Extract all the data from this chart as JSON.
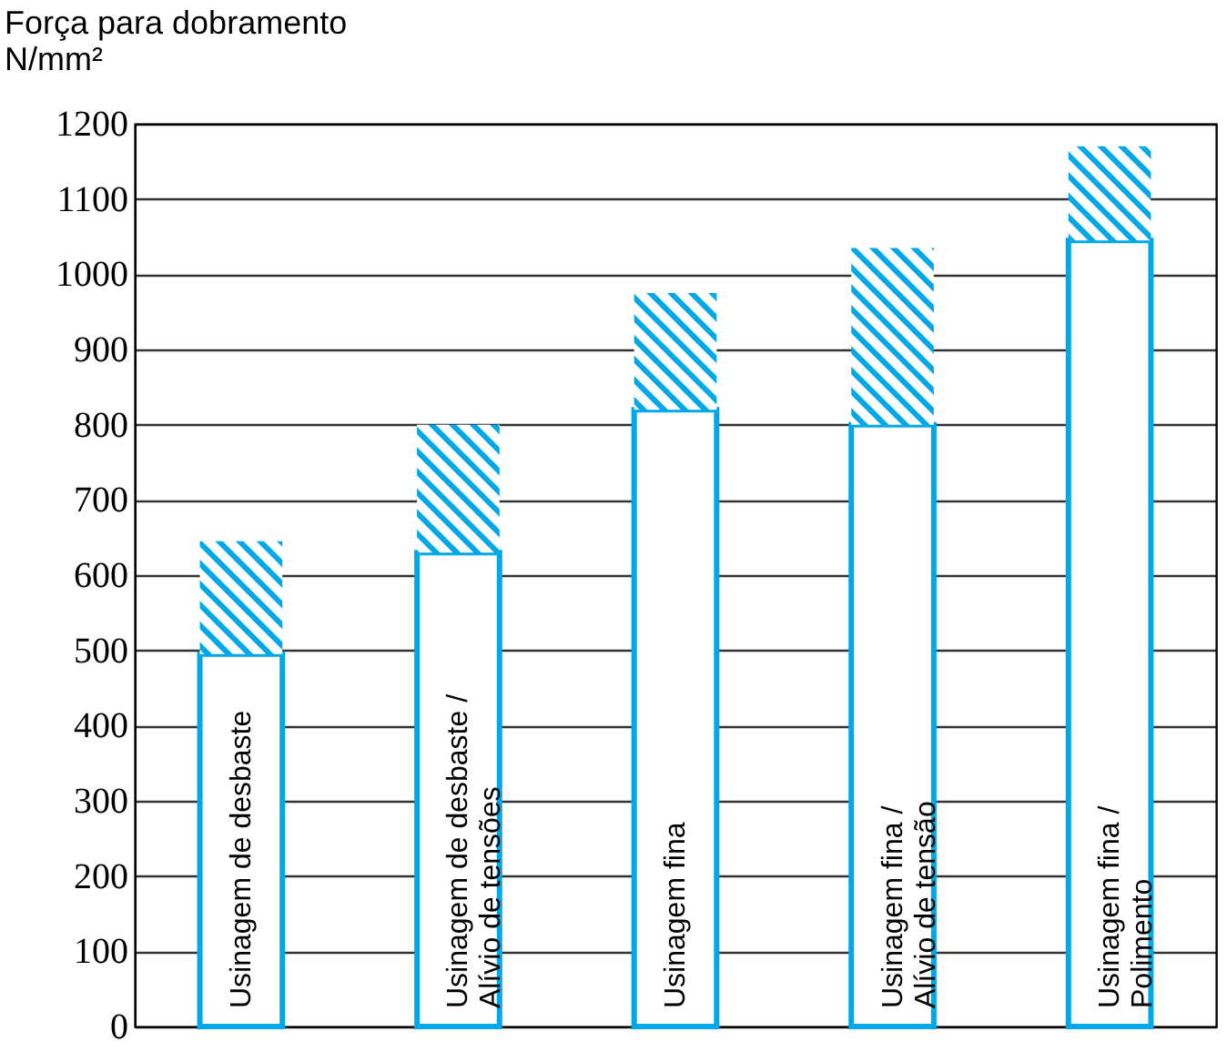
{
  "chart_data": {
    "type": "bar",
    "ylabel": "Força para dobramento\nN/mm²",
    "categories": [
      "Usinagem de desbaste",
      "Usinagem de desbaste /\nAlívio de tensões",
      "Usinagem fina",
      "Usinagem fina /\nAlívio de tensão",
      "Usinagem fina /\nPolimento"
    ],
    "stacked": true,
    "series": [
      {
        "color": "#00a8e8",
        "values": [
          495,
          630,
          820,
          800,
          1045
        ]
      },
      {
        "color": "#00a8e8",
        "values": [
          150,
          170,
          155,
          235,
          125
        ]
      }
    ],
    "ylim": [
      0,
      1200
    ],
    "yticks": [
      0,
      100,
      200,
      300,
      400,
      500,
      600,
      700,
      800,
      900,
      1000,
      1100,
      1200
    ],
    "grid": "y",
    "legend": false
  }
}
